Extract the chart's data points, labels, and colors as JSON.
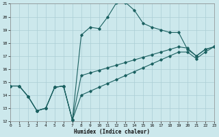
{
  "xlabel": "Humidex (Indice chaleur)",
  "bg_color": "#cce8ec",
  "grid_color": "#aacdd4",
  "line_color": "#1a6060",
  "xlim": [
    0,
    23
  ],
  "ylim": [
    12,
    21
  ],
  "xticks": [
    0,
    1,
    2,
    3,
    4,
    5,
    6,
    7,
    8,
    9,
    10,
    11,
    12,
    13,
    14,
    15,
    16,
    17,
    18,
    19,
    20,
    21,
    22,
    23
  ],
  "yticks": [
    12,
    13,
    14,
    15,
    16,
    17,
    18,
    19,
    20,
    21
  ],
  "series1_x": [
    0,
    1,
    2,
    3,
    4,
    5,
    6,
    7,
    8,
    9,
    10,
    11,
    12,
    13,
    14,
    15,
    16,
    17,
    18,
    19,
    20,
    21,
    22,
    23
  ],
  "series1_y": [
    14.7,
    14.7,
    13.9,
    12.8,
    13.0,
    14.6,
    14.7,
    12.1,
    18.6,
    19.2,
    19.1,
    20.0,
    21.1,
    21.1,
    20.5,
    19.5,
    19.2,
    19.0,
    18.8,
    18.8,
    17.5,
    17.0,
    17.5,
    17.7
  ],
  "series2_x": [
    0,
    1,
    2,
    3,
    4,
    5,
    6,
    7,
    8,
    9,
    10,
    11,
    12,
    13,
    14,
    15,
    16,
    17,
    18,
    19,
    20,
    21,
    22,
    23
  ],
  "series2_y": [
    14.7,
    14.7,
    13.9,
    12.8,
    13.0,
    14.6,
    14.7,
    12.1,
    15.5,
    15.7,
    15.9,
    16.1,
    16.3,
    16.5,
    16.7,
    16.9,
    17.1,
    17.3,
    17.5,
    17.7,
    17.6,
    17.0,
    17.5,
    17.7
  ],
  "series3_x": [
    0,
    1,
    2,
    3,
    4,
    5,
    6,
    7,
    8,
    9,
    10,
    11,
    12,
    13,
    14,
    15,
    16,
    17,
    18,
    19,
    20,
    21,
    22,
    23
  ],
  "series3_y": [
    14.7,
    14.7,
    13.9,
    12.8,
    13.0,
    14.6,
    14.7,
    12.1,
    14.0,
    14.3,
    14.6,
    14.9,
    15.2,
    15.5,
    15.8,
    16.1,
    16.4,
    16.7,
    17.0,
    17.3,
    17.3,
    16.8,
    17.3,
    17.7
  ]
}
